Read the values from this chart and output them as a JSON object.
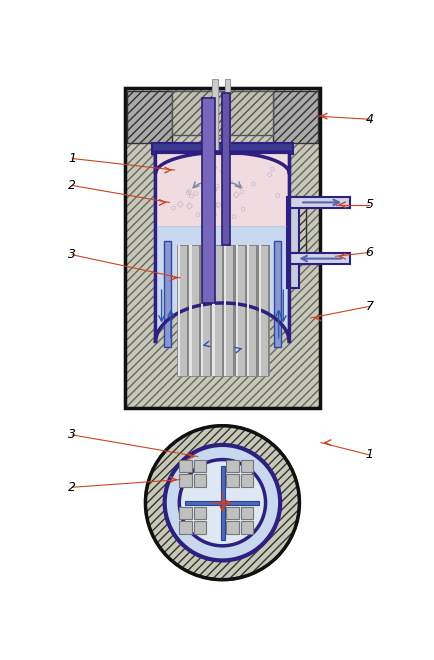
{
  "bg_color": "#ffffff",
  "concrete_color": "#c8c8b8",
  "concrete_edge": "#666666",
  "vessel_blue": "#2d2080",
  "vessel_fill_steam": "#f0dce0",
  "vessel_fill_water": "#c8d8ee",
  "fuel_color": "#b8b8b8",
  "fuel_edge": "#888888",
  "ctrl_rod_color": "#6655aa",
  "ctrl_rod_edge": "#2a2070",
  "pipe_fill": "#c8ccdd",
  "pipe_edge": "#2d2080",
  "shroud_fill": "#c8d8ee",
  "arrow_blue": "#3355aa",
  "label_line": "#cc4422",
  "font_size": 9
}
